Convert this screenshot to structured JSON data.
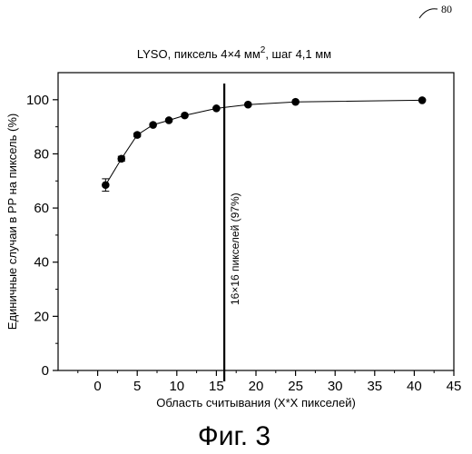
{
  "ref_number": "80",
  "figure_caption": "Фиг. 3",
  "chart_data": {
    "type": "scatter",
    "title_main": "LYSO, пиксель 4×4 мм",
    "title_superscript": "2",
    "title_rest": ", шаг 4,1 мм",
    "xlabel": "Область считывания (X*X пикселей)",
    "ylabel": "Единичные случаи в PP на пиксель (%)",
    "xlim": [
      -5,
      45
    ],
    "ylim": [
      0,
      110
    ],
    "xticks": [
      0,
      5,
      10,
      15,
      20,
      25,
      30,
      35,
      40,
      45
    ],
    "yticks": [
      0,
      20,
      40,
      60,
      80,
      100
    ],
    "series": [
      {
        "x": [
          1,
          3,
          5,
          7,
          9,
          11,
          15,
          19,
          25,
          41
        ],
        "y": [
          68.5,
          78.2,
          87,
          90.7,
          92.4,
          94.2,
          96.8,
          98.2,
          99.2,
          99.8
        ],
        "yerr": [
          2.3,
          0.9,
          0.7,
          0.5,
          0.5,
          0.4,
          0.4,
          0.3,
          0.3,
          0.3
        ]
      }
    ],
    "annotation": {
      "x": 16,
      "text": "16×16 пикселей (97%)"
    },
    "grid": false
  }
}
